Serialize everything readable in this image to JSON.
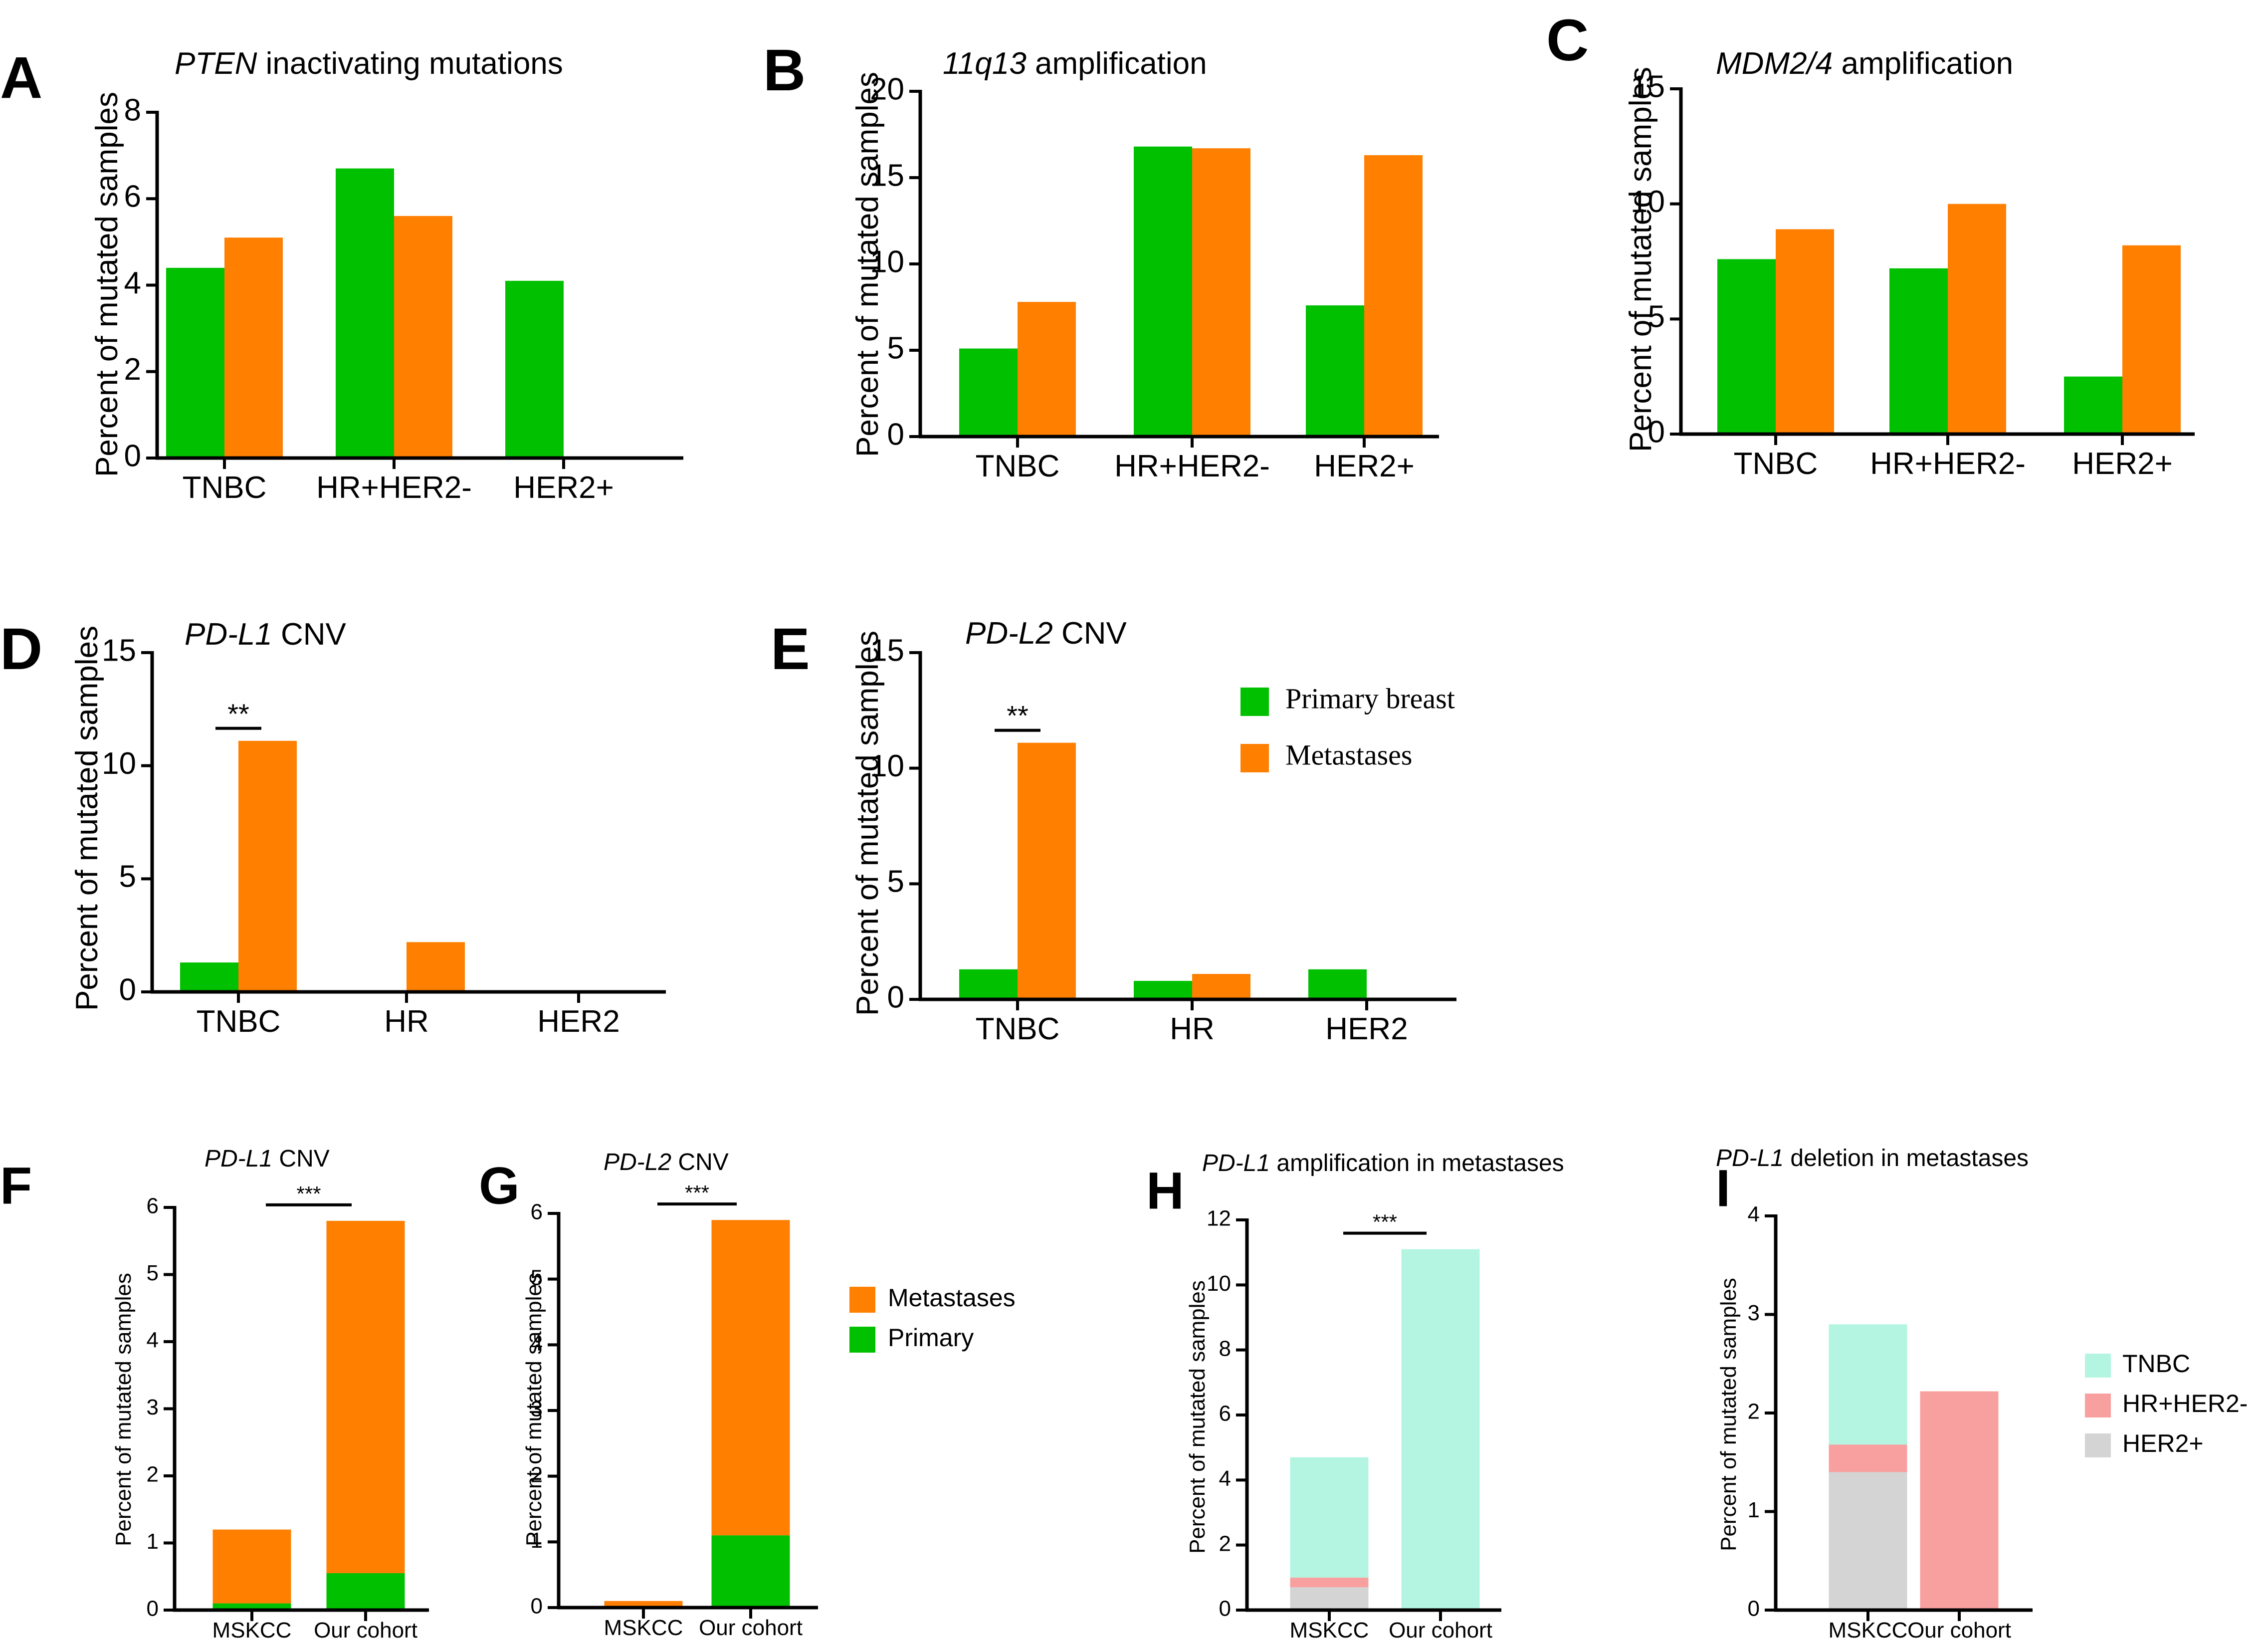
{
  "colors": {
    "primary": "#00c000",
    "metastases": "#ff7f00",
    "tnbc": "#b3f5e0",
    "hr_her2neg": "#f8a0a0",
    "her2pos": "#d4d4d4"
  },
  "chart_data": [
    {
      "panel": "A",
      "type": "bar",
      "title_italic": "PTEN",
      "title_rest": " inactivating mutations",
      "ylabel": "Percent of mutated samples",
      "ylim": [
        0,
        8
      ],
      "yticks": [
        0,
        2,
        4,
        6,
        8
      ],
      "categories": [
        "TNBC",
        "HR+HER2-",
        "HER2+"
      ],
      "series": [
        {
          "name": "Primary breast",
          "color_key": "primary",
          "values": [
            4.4,
            6.7,
            4.1
          ]
        },
        {
          "name": "Metastases",
          "color_key": "metastases",
          "values": [
            5.1,
            5.6,
            0
          ]
        }
      ]
    },
    {
      "panel": "B",
      "type": "bar",
      "title_italic": "11q13",
      "title_rest": " amplification",
      "ylabel": "Percent of mutated samples",
      "ylim": [
        0,
        20
      ],
      "yticks": [
        0,
        5,
        10,
        15,
        20
      ],
      "categories": [
        "TNBC",
        "HR+HER2-",
        "HER2+"
      ],
      "series": [
        {
          "name": "Primary breast",
          "color_key": "primary",
          "values": [
            5.1,
            16.8,
            7.6
          ]
        },
        {
          "name": "Metastases",
          "color_key": "metastases",
          "values": [
            7.8,
            16.7,
            16.3
          ]
        }
      ]
    },
    {
      "panel": "C",
      "type": "bar",
      "title_italic": "MDM2/4",
      "title_rest": " amplification",
      "ylabel": "Percent of mutated samples",
      "ylim": [
        0,
        15
      ],
      "yticks": [
        0,
        5,
        10,
        15
      ],
      "categories": [
        "TNBC",
        "HR+HER2-",
        "HER2+"
      ],
      "series": [
        {
          "name": "Primary breast",
          "color_key": "primary",
          "values": [
            7.6,
            7.2,
            2.5
          ]
        },
        {
          "name": "Metastases",
          "color_key": "metastases",
          "values": [
            8.9,
            10.0,
            8.2
          ]
        }
      ]
    },
    {
      "panel": "D",
      "type": "bar",
      "title_italic": "PD-L1",
      "title_rest": " CNV",
      "ylabel": "Percent of mutated samples",
      "ylim": [
        0,
        15
      ],
      "yticks": [
        0,
        5,
        10,
        15
      ],
      "categories": [
        "TNBC",
        "HR",
        "HER2"
      ],
      "series": [
        {
          "name": "Primary breast",
          "color_key": "primary",
          "values": [
            1.3,
            0,
            0
          ]
        },
        {
          "name": "Metastases",
          "color_key": "metastases",
          "values": [
            11.1,
            2.2,
            0
          ]
        }
      ],
      "annotations": [
        {
          "text": "**",
          "category": 0
        }
      ]
    },
    {
      "panel": "E",
      "type": "bar",
      "title_italic": "PD-L2",
      "title_rest": " CNV",
      "ylabel": "Percent of mutated samples",
      "ylim": [
        0,
        15
      ],
      "yticks": [
        0,
        5,
        10,
        15
      ],
      "categories": [
        "TNBC",
        "HR",
        "HER2"
      ],
      "series": [
        {
          "name": "Primary breast",
          "color_key": "primary",
          "values": [
            1.3,
            0.8,
            1.3
          ]
        },
        {
          "name": "Metastases",
          "color_key": "metastases",
          "values": [
            11.1,
            1.1,
            0
          ]
        }
      ],
      "annotations": [
        {
          "text": "**",
          "category": 0
        }
      ],
      "legend": [
        "Primary breast",
        "Metastases"
      ]
    },
    {
      "panel": "F",
      "type": "stacked_bar",
      "title_italic": "PD-L1",
      "title_rest": " CNV",
      "ylabel": "Percent of mutated samples",
      "ylim": [
        0,
        6
      ],
      "yticks": [
        0,
        1,
        2,
        3,
        4,
        5,
        6
      ],
      "categories": [
        "MSKCC",
        "Our cohort"
      ],
      "series": [
        {
          "name": "Primary",
          "color_key": "primary",
          "values": [
            0.1,
            0.55
          ]
        },
        {
          "name": "Metastases",
          "color_key": "metastases",
          "values": [
            1.1,
            5.25
          ]
        }
      ],
      "annotations": [
        {
          "text": "***",
          "between": [
            0,
            1
          ]
        }
      ]
    },
    {
      "panel": "G",
      "type": "stacked_bar",
      "title_italic": "PD-L2",
      "title_rest": " CNV",
      "ylabel": "Percent of mutated samples",
      "ylim": [
        0,
        6
      ],
      "yticks": [
        0,
        1,
        2,
        3,
        4,
        5,
        6
      ],
      "categories": [
        "MSKCC",
        "Our cohort"
      ],
      "series": [
        {
          "name": "Primary",
          "color_key": "primary",
          "values": [
            0,
            1.1
          ]
        },
        {
          "name": "Metastases",
          "color_key": "metastases",
          "values": [
            0.1,
            4.8
          ]
        }
      ],
      "annotations": [
        {
          "text": "***",
          "between": [
            0,
            1
          ]
        }
      ],
      "legend": [
        "Metastases",
        "Primary"
      ]
    },
    {
      "panel": "H",
      "type": "stacked_bar",
      "title_italic": "PD-L1",
      "title_rest": " amplification in metastases",
      "ylabel": "Percent of mutated samples",
      "ylim": [
        0,
        12
      ],
      "yticks": [
        0,
        2,
        4,
        6,
        8,
        10,
        12
      ],
      "categories": [
        "MSKCC",
        "Our cohort"
      ],
      "series": [
        {
          "name": "HER2+",
          "color_key": "her2pos",
          "values": [
            0.7,
            0
          ]
        },
        {
          "name": "HR+HER2-",
          "color_key": "hr_her2neg",
          "values": [
            0.3,
            0
          ]
        },
        {
          "name": "TNBC",
          "color_key": "tnbc",
          "values": [
            3.7,
            11.1
          ]
        }
      ],
      "annotations": [
        {
          "text": "***",
          "between": [
            0,
            1
          ]
        }
      ]
    },
    {
      "panel": "I",
      "type": "stacked_bar",
      "title_italic": "PD-L1",
      "title_rest": " deletion in metastases",
      "ylabel": "Percent of mutated samples",
      "ylim": [
        0,
        4
      ],
      "yticks": [
        0,
        1,
        2,
        3,
        4
      ],
      "categories": [
        "MSKCC",
        "Our cohort"
      ],
      "series": [
        {
          "name": "HER2+",
          "color_key": "her2pos",
          "values": [
            1.4,
            0
          ]
        },
        {
          "name": "HR+HER2-",
          "color_key": "hr_her2neg",
          "values": [
            0.28,
            2.22
          ]
        },
        {
          "name": "TNBC",
          "color_key": "tnbc",
          "values": [
            1.22,
            0
          ]
        }
      ],
      "legend": [
        "TNBC",
        "HR+HER2-",
        "HER2+"
      ]
    }
  ]
}
